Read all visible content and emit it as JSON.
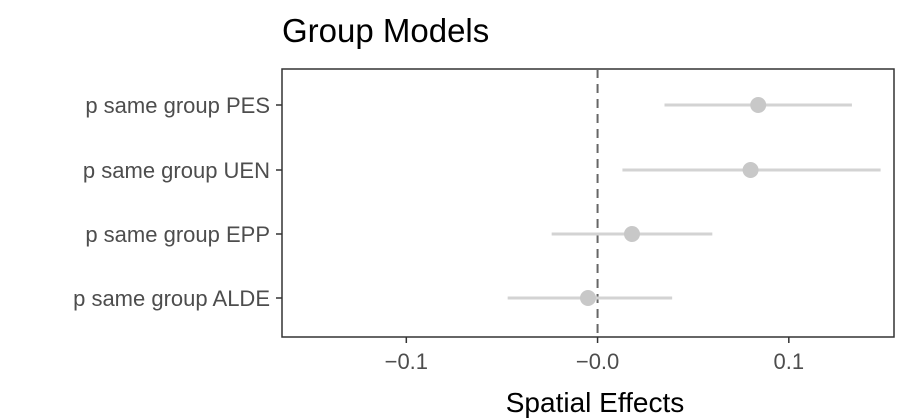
{
  "chart_data": {
    "type": "forest",
    "title": "Group Models",
    "xlabel": "Spatial Effects",
    "xlim": [
      -0.165,
      0.155
    ],
    "xticks": [
      -0.1,
      0.0,
      0.1
    ],
    "xtick_labels": [
      "−0.1",
      "−0.0",
      "0.1"
    ],
    "reference_line": 0.0,
    "grid": false,
    "point_color": "#c8c8c8",
    "interval_color": "#d3d3d3",
    "reference_color": "#666666",
    "categories": [
      "p same group PES",
      "p same group UEN",
      "p same group EPP",
      "p same group ALDE"
    ],
    "estimates": [
      0.084,
      0.08,
      0.018,
      -0.005
    ],
    "lower": [
      0.035,
      0.013,
      -0.024,
      -0.047
    ],
    "upper": [
      0.133,
      0.148,
      0.06,
      0.039
    ]
  }
}
